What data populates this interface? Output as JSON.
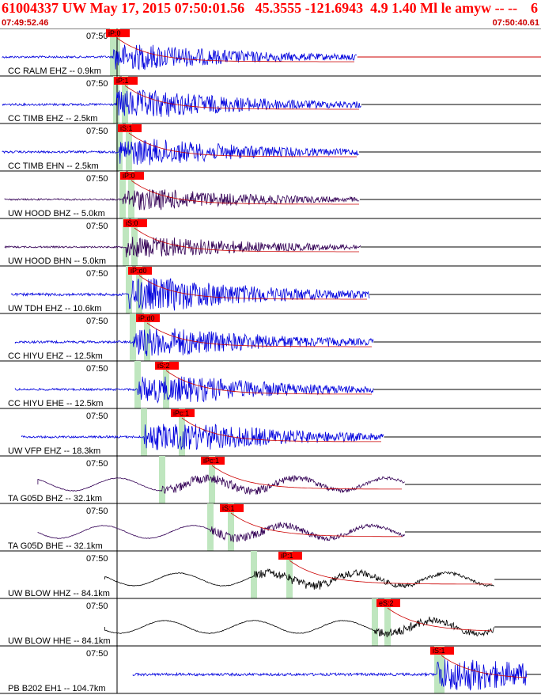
{
  "header": {
    "title": "61004337 UW May 17, 2015 07:50:01.56   45.3555 -121.6943  4.9 1.40 Ml le amyw -- --",
    "title_right": "6",
    "start_time": "07:49:52.46",
    "end_time": "07:50:40.61"
  },
  "colors": {
    "blue_trace": "#0000dd",
    "dark_trace": "#330055",
    "black_trace": "#000000",
    "pick_bar": "#bfe6bf",
    "pick_label_bg": "#ff0000",
    "decay_curve": "#cc0000"
  },
  "chart_data": {
    "type": "line",
    "title": "61004337 UW May 17, 2015 07:50:01.56",
    "x_range": [
      "07:49:52.46",
      "07:50:40.61"
    ],
    "time_label": "07:50",
    "traces": [
      {
        "label": "CC RALM EHZ -- 0.9km",
        "color": "blue",
        "pick": "iP:0",
        "start_s": 0.0,
        "end_s": 44.0,
        "amp": 0.55
      },
      {
        "label": "CC TIMB EHZ -- 2.5km",
        "color": "blue",
        "pick": "iP:1",
        "start_s": 0.0,
        "end_s": 44.5,
        "amp": 0.6
      },
      {
        "label": "CC TIMB EHN -- 2.5km",
        "color": "blue",
        "pick": "iS:1",
        "start_s": 0.0,
        "end_s": 44.2,
        "amp": 0.55
      },
      {
        "label": "UW HOOD BHZ -- 5.0km",
        "color": "dark",
        "pick": "iP:0",
        "start_s": 0.3,
        "end_s": 44.3,
        "amp": 0.45
      },
      {
        "label": "UW HOOD BHN -- 5.0km",
        "color": "dark",
        "pick": "iS:0",
        "start_s": 0.3,
        "end_s": 44.4,
        "amp": 0.45
      },
      {
        "label": "UW TDH EHZ -- 10.6km",
        "color": "blue",
        "pick": "iP:d0",
        "start_s": 1.1,
        "end_s": 45.5,
        "amp": 0.7
      },
      {
        "label": "CC HIYU EHZ -- 12.5km",
        "color": "blue",
        "pick": "iP:d0",
        "start_s": 1.6,
        "end_s": 46.0,
        "amp": 0.6
      },
      {
        "label": "CC HIYU EHE -- 12.5km",
        "color": "blue",
        "pick": "iS:2",
        "start_s": 1.6,
        "end_s": 46.0,
        "amp": 0.55
      },
      {
        "label": "UW VFP EHZ -- 18.3km",
        "color": "blue",
        "pick": "iPc:1",
        "start_s": 2.4,
        "end_s": 47.3,
        "amp": 0.55
      },
      {
        "label": "TA G05D BHZ -- 32.1km",
        "color": "dark",
        "pick": "iPc:1",
        "start_s": 4.4,
        "end_s": 49.9,
        "amp": 0.55
      },
      {
        "label": "TA G05D BHE -- 32.1km",
        "color": "dark",
        "pick": "iS:1",
        "start_s": 4.4,
        "end_s": 49.9,
        "amp": 0.5
      },
      {
        "label": "UW BLOW HHZ -- 84.1km",
        "color": "black",
        "pick": "iP:1",
        "start_s": 12.7,
        "end_s": 61.0,
        "amp": 0.55
      },
      {
        "label": "UW BLOW HHE -- 84.1km",
        "color": "black",
        "pick": "eS:2",
        "start_s": 12.7,
        "end_s": 61.0,
        "amp": 0.55
      },
      {
        "label": "PB B202 EH1 -- 104.7km",
        "color": "blue",
        "pick": "iS:1",
        "start_s": 16.2,
        "end_s": 65.0,
        "amp": 0.7
      }
    ]
  }
}
